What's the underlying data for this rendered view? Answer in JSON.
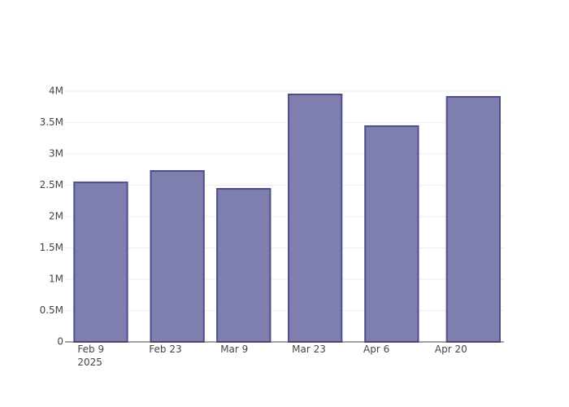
{
  "chart_data": {
    "type": "bar",
    "x": [
      "2025-02-11",
      "2025-02-26",
      "2025-03-11",
      "2025-03-25",
      "2025-04-09",
      "2025-04-25"
    ],
    "values": [
      2545000,
      2727000,
      2442000,
      3948000,
      3442000,
      3909000
    ],
    "color": "#7f7faf",
    "line_color": "#4f4d8c",
    "xlim": [
      "2025-02-04",
      "2025-05-01"
    ],
    "xticks": [
      {
        "value": "2025-02-09",
        "label": "Feb 9\n2025"
      },
      {
        "value": "2025-02-23",
        "label": "Feb 23"
      },
      {
        "value": "2025-03-09",
        "label": "Mar 9"
      },
      {
        "value": "2025-03-23",
        "label": "Mar 23"
      },
      {
        "value": "2025-04-06",
        "label": "Apr 6"
      },
      {
        "value": "2025-04-20",
        "label": "Apr 20"
      }
    ],
    "ylim": [
      0,
      4000000
    ],
    "yticks": [
      0,
      {
        "value": 500000,
        "label": "0.5M"
      },
      {
        "value": 1000000,
        "label": "1M"
      },
      {
        "value": 1500000,
        "label": "1.5M"
      },
      {
        "value": 2000000,
        "label": "2M"
      },
      {
        "value": 2500000,
        "label": "2.5M"
      },
      {
        "value": 3000000,
        "label": "3M"
      },
      {
        "value": 3500000,
        "label": "3.5M"
      },
      {
        "value": 4000000,
        "label": "4M"
      }
    ],
    "grid": true
  }
}
